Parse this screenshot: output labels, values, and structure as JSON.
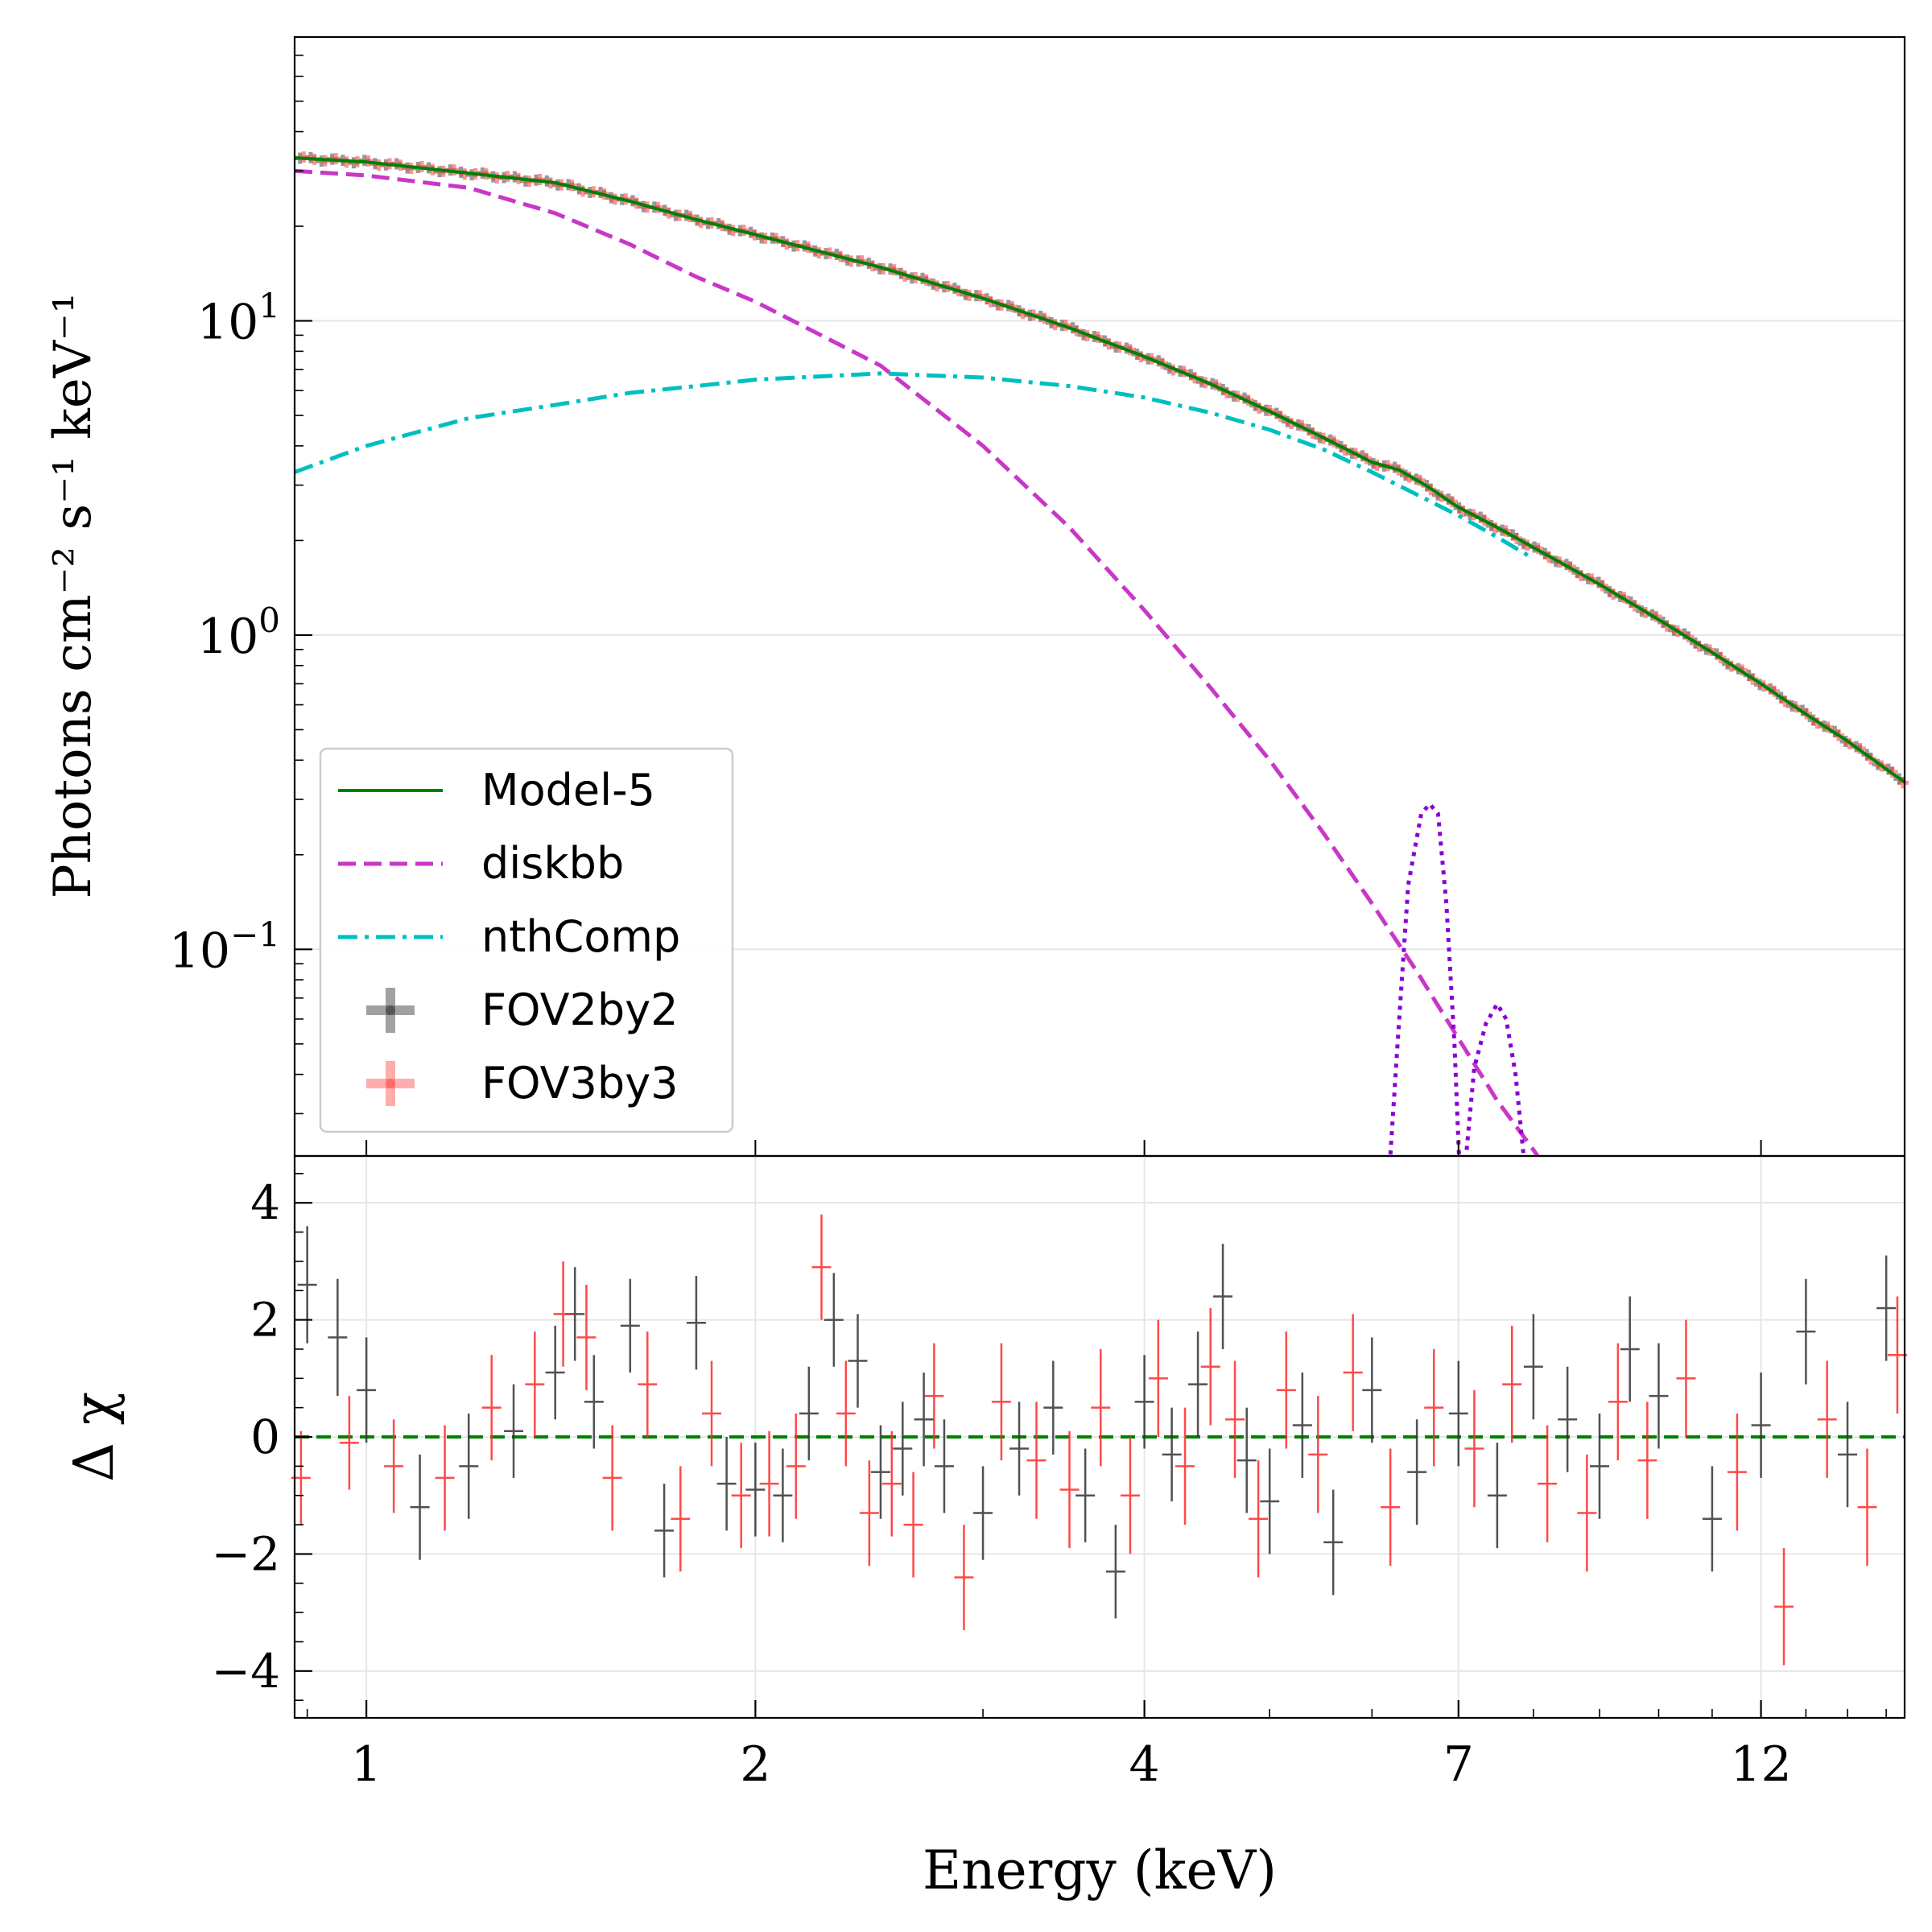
{
  "chart_data": [
    {
      "type": "line",
      "panel": "spectrum",
      "ylabel": "Photons cm⁻² s⁻¹ keV⁻¹",
      "xscale": "log",
      "yscale": "log",
      "xlim": [
        0.88,
        15.5
      ],
      "ylim": [
        0.022,
        80
      ],
      "yticks": [
        {
          "value": 10,
          "base": "10",
          "exp": "1"
        },
        {
          "value": 1,
          "base": "10",
          "exp": "0"
        },
        {
          "value": 0.1,
          "base": "10",
          "exp": "−1"
        }
      ],
      "grid": true,
      "legend_position": "lower-left",
      "legend": [
        {
          "label": "Model-5",
          "style": "solid",
          "color": "#008000"
        },
        {
          "label": "diskbb",
          "style": "dashed",
          "color": "#c837c8"
        },
        {
          "label": "nthComp",
          "style": "dashdot",
          "color": "#00bfbf"
        },
        {
          "label": "FOV2by2",
          "style": "errorbar",
          "color": "#555555"
        },
        {
          "label": "FOV3by3",
          "style": "errorbar",
          "color": "#ff6b6b"
        }
      ],
      "series": [
        {
          "name": "Model-5",
          "color": "#008000",
          "style": "solid",
          "x": [
            0.88,
            1.0,
            1.2,
            1.4,
            1.6,
            1.8,
            2.0,
            2.5,
            3.0,
            3.5,
            4.0,
            4.5,
            5.0,
            5.5,
            6.0,
            6.3,
            6.6,
            7.0,
            7.5,
            8.0,
            9.0,
            10.0,
            11.0,
            12.0,
            13.0,
            14.0,
            15.5
          ],
          "y": [
            33,
            32,
            29.5,
            27.5,
            24,
            21,
            18.8,
            14.8,
            11.8,
            9.5,
            7.7,
            6.3,
            5.15,
            4.25,
            3.55,
            3.35,
            3.0,
            2.55,
            2.2,
            1.9,
            1.45,
            1.12,
            0.88,
            0.7,
            0.56,
            0.46,
            0.34
          ]
        },
        {
          "name": "diskbb",
          "color": "#c837c8",
          "style": "dashed",
          "x": [
            0.88,
            1.0,
            1.2,
            1.4,
            1.6,
            1.8,
            2.0,
            2.5,
            3.0,
            3.5,
            4.0,
            4.5,
            5.0,
            5.5,
            6.0,
            6.5,
            7.0,
            7.5,
            8.0,
            8.5
          ],
          "y": [
            30,
            29,
            26.5,
            22,
            17.5,
            13.8,
            11.5,
            7.2,
            4.0,
            2.2,
            1.2,
            0.68,
            0.4,
            0.235,
            0.14,
            0.085,
            0.052,
            0.033,
            0.023,
            0.016
          ]
        },
        {
          "name": "nthComp",
          "color": "#00bfbf",
          "style": "dashdot",
          "x": [
            0.88,
            1.0,
            1.2,
            1.4,
            1.6,
            1.8,
            2.0,
            2.5,
            3.0,
            3.5,
            4.0,
            4.5,
            5.0,
            5.5,
            6.0,
            6.5,
            7.0,
            7.5,
            8.0
          ],
          "y": [
            3.3,
            4.0,
            4.9,
            5.4,
            5.9,
            6.2,
            6.5,
            6.8,
            6.6,
            6.2,
            5.7,
            5.1,
            4.5,
            3.9,
            3.3,
            2.8,
            2.4,
            2.05,
            1.75
          ]
        },
        {
          "name": "",
          "color": "#8a00d4",
          "style": "dotted",
          "x": [
            6.18,
            6.28,
            6.4,
            6.55,
            6.65,
            6.75,
            6.85,
            6.95,
            7.02,
            7.08,
            7.2,
            7.35,
            7.5,
            7.62,
            7.75,
            7.88
          ],
          "y": [
            0.018,
            0.05,
            0.16,
            0.27,
            0.29,
            0.27,
            0.14,
            0.05,
            0.018,
            0.02,
            0.042,
            0.058,
            0.067,
            0.06,
            0.04,
            0.02
          ]
        }
      ],
      "data_series": [
        {
          "name": "FOV2by2",
          "color": "#444444"
        },
        {
          "name": "FOV3by3",
          "color": "#ff3b3b"
        }
      ]
    },
    {
      "type": "scatter",
      "panel": "residuals",
      "xlabel": "Energy (keV)",
      "ylabel": "Δ χ",
      "xscale": "log",
      "xlim": [
        0.88,
        15.5
      ],
      "ylim": [
        -4.8,
        4.8
      ],
      "xticks": [
        1,
        2,
        4,
        7,
        12
      ],
      "xtick_labels": [
        "1",
        "2",
        "4",
        "7",
        "12"
      ],
      "yticks": [
        4,
        2,
        0,
        -2,
        -4
      ],
      "ytick_labels": [
        "4",
        "2",
        "0",
        "−2",
        "−4"
      ],
      "reference_line": {
        "y": 0,
        "color": "#008000",
        "style": "dashed"
      },
      "series": [
        {
          "name": "FOV2by2",
          "color": "#333333",
          "x": [
            0.9,
            0.95,
            1.0,
            1.1,
            1.2,
            1.3,
            1.4,
            1.45,
            1.5,
            1.6,
            1.7,
            1.8,
            1.9,
            2.0,
            2.1,
            2.2,
            2.3,
            2.4,
            2.5,
            2.6,
            2.7,
            2.8,
            3.0,
            3.2,
            3.4,
            3.6,
            3.8,
            4.0,
            4.2,
            4.4,
            4.6,
            4.8,
            5.0,
            5.3,
            5.6,
            6.0,
            6.5,
            7.0,
            7.5,
            8.0,
            8.5,
            9.0,
            9.5,
            10.0,
            11.0,
            12.0,
            13.0,
            14.0,
            15.0
          ],
          "y": [
            2.6,
            1.7,
            0.8,
            -1.2,
            -0.5,
            0.1,
            1.1,
            2.1,
            0.6,
            1.9,
            -1.6,
            1.95,
            -0.8,
            -0.9,
            -1.0,
            0.4,
            2.0,
            1.3,
            -0.6,
            -0.2,
            0.3,
            -0.5,
            -1.3,
            -0.2,
            0.5,
            -1.0,
            -2.3,
            0.6,
            -0.3,
            0.9,
            2.4,
            -0.4,
            -1.1,
            0.2,
            -1.8,
            0.8,
            -0.6,
            0.4,
            -1.0,
            1.2,
            0.3,
            -0.5,
            1.5,
            0.7,
            -1.4,
            0.2,
            1.8,
            -0.3,
            2.2
          ],
          "err": [
            1.0,
            1.0,
            0.9,
            0.9,
            0.9,
            0.8,
            0.8,
            0.8,
            0.8,
            0.8,
            0.8,
            0.8,
            0.8,
            0.8,
            0.8,
            0.8,
            0.8,
            0.8,
            0.8,
            0.8,
            0.8,
            0.8,
            0.8,
            0.8,
            0.8,
            0.8,
            0.8,
            0.8,
            0.8,
            0.9,
            0.9,
            0.9,
            0.9,
            0.9,
            0.9,
            0.9,
            0.9,
            0.9,
            0.9,
            0.9,
            0.9,
            0.9,
            0.9,
            0.9,
            0.9,
            0.9,
            0.9,
            0.9,
            0.9
          ]
        },
        {
          "name": "FOV3by3",
          "color": "#ff2a2a",
          "x": [
            0.89,
            0.97,
            1.05,
            1.15,
            1.25,
            1.35,
            1.42,
            1.48,
            1.55,
            1.65,
            1.75,
            1.85,
            1.95,
            2.05,
            2.15,
            2.25,
            2.35,
            2.45,
            2.55,
            2.65,
            2.75,
            2.9,
            3.1,
            3.3,
            3.5,
            3.7,
            3.9,
            4.1,
            4.3,
            4.5,
            4.7,
            4.9,
            5.15,
            5.45,
            5.8,
            6.2,
            6.7,
            7.2,
            7.7,
            8.2,
            8.8,
            9.3,
            9.8,
            10.5,
            11.5,
            12.5,
            13.5,
            14.5,
            15.3
          ],
          "y": [
            -0.7,
            -0.1,
            -0.5,
            -0.7,
            0.5,
            0.9,
            2.1,
            1.7,
            -0.7,
            0.9,
            -1.4,
            0.4,
            -1.0,
            -0.8,
            -0.5,
            2.9,
            0.4,
            -1.3,
            -0.8,
            -1.5,
            0.7,
            -2.4,
            0.6,
            -0.4,
            -0.9,
            0.5,
            -1.0,
            1.0,
            -0.5,
            1.2,
            0.3,
            -1.4,
            0.8,
            -0.3,
            1.1,
            -1.2,
            0.5,
            -0.2,
            0.9,
            -0.8,
            -1.3,
            0.6,
            -0.4,
            1.0,
            -0.6,
            -2.9,
            0.3,
            -1.2,
            1.4
          ],
          "err": [
            0.8,
            0.8,
            0.8,
            0.9,
            0.9,
            0.9,
            0.9,
            0.9,
            0.9,
            0.9,
            0.9,
            0.9,
            0.9,
            0.9,
            0.9,
            0.9,
            0.9,
            0.9,
            0.9,
            0.9,
            0.9,
            0.9,
            1.0,
            1.0,
            1.0,
            1.0,
            1.0,
            1.0,
            1.0,
            1.0,
            1.0,
            1.0,
            1.0,
            1.0,
            1.0,
            1.0,
            1.0,
            1.0,
            1.0,
            1.0,
            1.0,
            1.0,
            1.0,
            1.0,
            1.0,
            1.0,
            1.0,
            1.0,
            1.0
          ]
        }
      ]
    }
  ]
}
